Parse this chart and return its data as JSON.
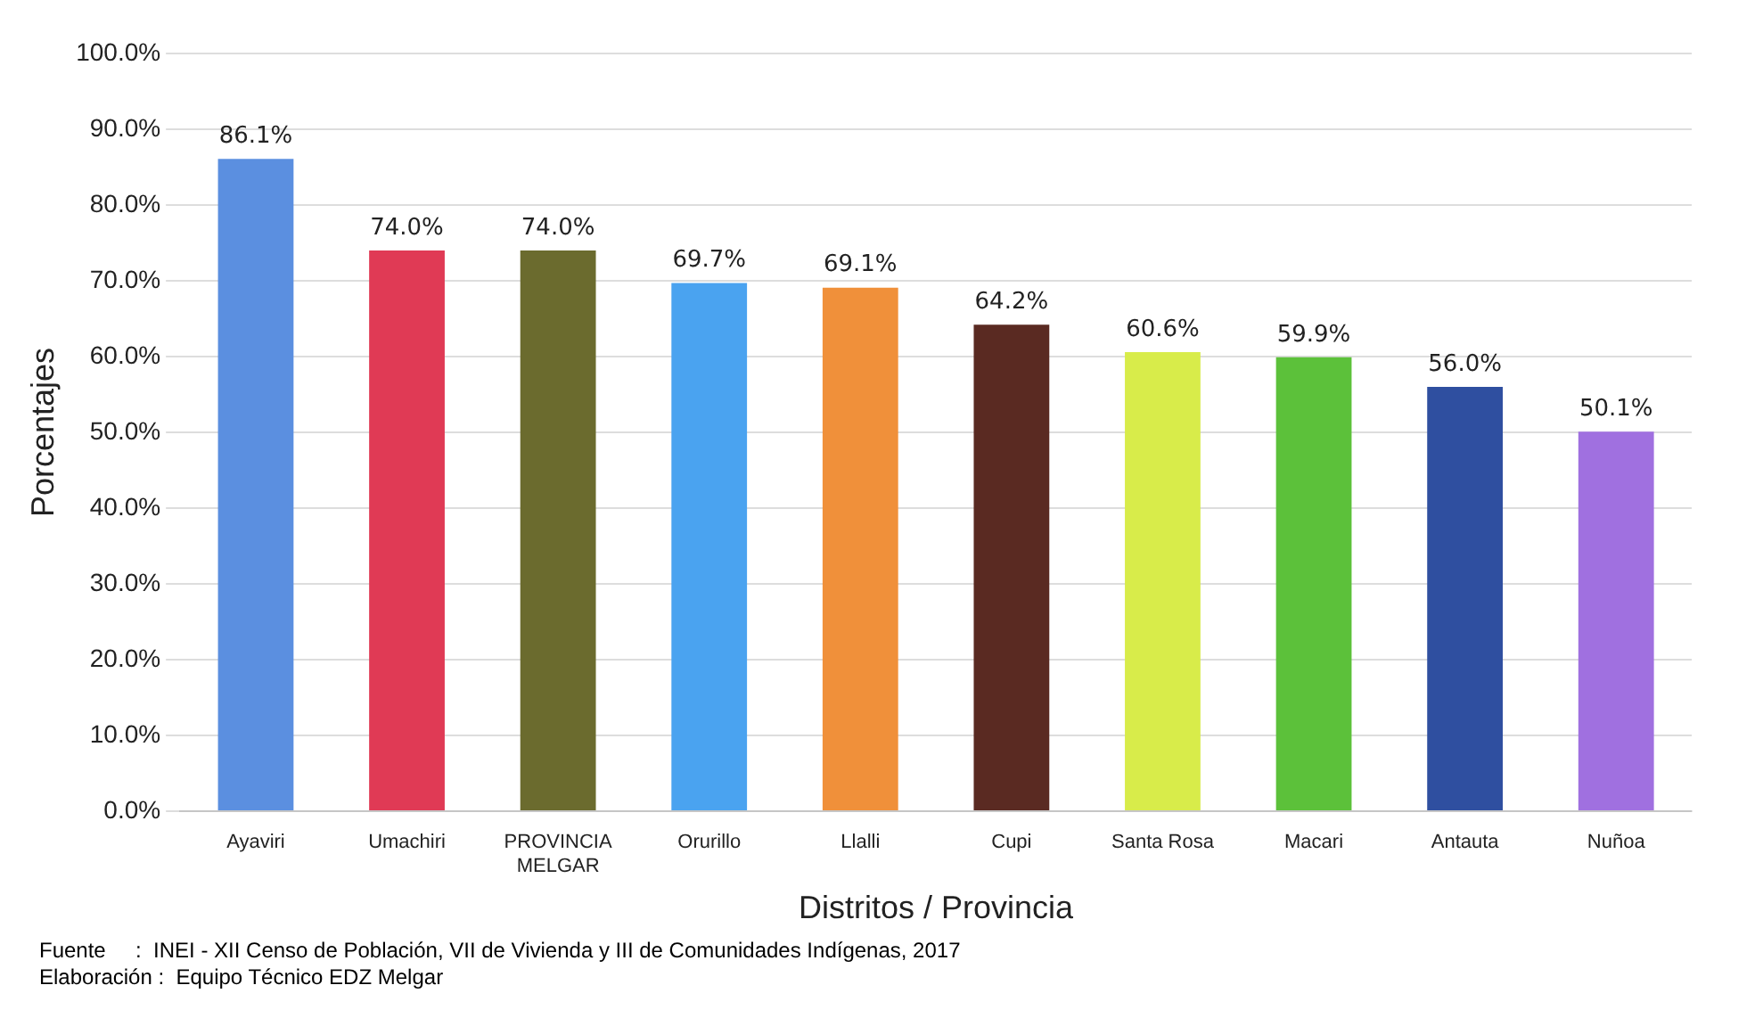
{
  "chart_data": {
    "type": "bar",
    "xlabel": "Distritos / Provincia",
    "ylabel": "Porcentajes",
    "categories": [
      "Ayaviri",
      "Umachiri",
      "PROVINCIA MELGAR",
      "Orurillo",
      "Llalli",
      "Cupi",
      "Santa Rosa",
      "Macari",
      "Antauta",
      "Nuñoa"
    ],
    "values": [
      86.1,
      74.0,
      74.0,
      69.7,
      69.1,
      64.2,
      60.6,
      59.9,
      56.0,
      50.1
    ],
    "value_labels": [
      "86.1%",
      "74.0%",
      "74.0%",
      "69.7%",
      "69.1%",
      "64.2%",
      "60.6%",
      "59.9%",
      "56.0%",
      "50.1%"
    ],
    "colors": [
      "#5b8fe0",
      "#e03a55",
      "#6b6b2e",
      "#4aa3f0",
      "#f0903a",
      "#5a2a22",
      "#d8ec4a",
      "#5cc13a",
      "#2f4fa0",
      "#a070e0"
    ],
    "ylim": [
      0,
      100
    ],
    "yticks": [
      {
        "value": 0,
        "label": "0.0%"
      },
      {
        "value": 10,
        "label": "10.0%"
      },
      {
        "value": 20,
        "label": "20.0%"
      },
      {
        "value": 30,
        "label": "30.0%"
      },
      {
        "value": 40,
        "label": "40.0%"
      },
      {
        "value": 50,
        "label": "50.0%"
      },
      {
        "value": 60,
        "label": "60.0%"
      },
      {
        "value": 70,
        "label": "70.0%"
      },
      {
        "value": 80,
        "label": "80.0%"
      },
      {
        "value": 90,
        "label": "90.0%"
      },
      {
        "value": 100,
        "label": "100.0%"
      }
    ],
    "grid": "y",
    "legend": false,
    "annotations": [
      "Fuente     :  INEI - XII Censo de Población, VII de Vivienda y III de Comunidades Indígenas, 2017",
      "Elaboración :  Equipo Técnico EDZ Melgar"
    ]
  }
}
